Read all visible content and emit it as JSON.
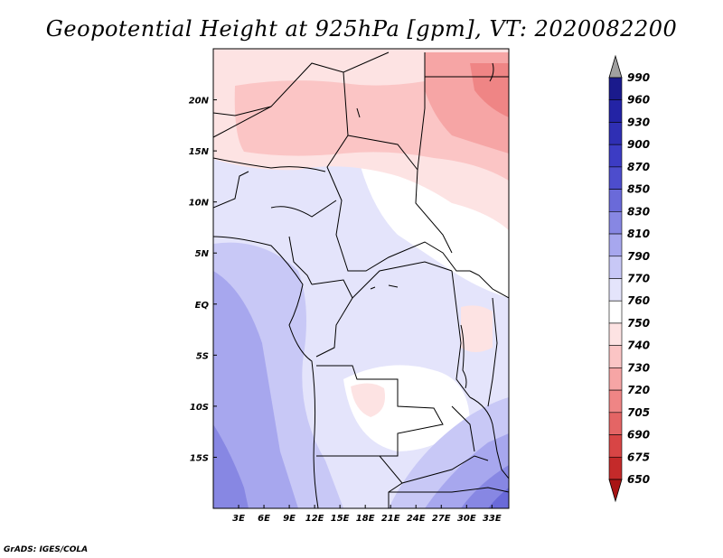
{
  "title": "Geopotential Height at 925hPa [gpm], VT: 2020082200",
  "footer": "GrADS: IGES/COLA",
  "chart_data": {
    "type": "heatmap",
    "title": "Geopotential Height at 925hPa [gpm], VT: 2020082200",
    "field": "Geopotential Height at 925hPa",
    "units": "gpm",
    "valid_time": "2020082200",
    "x_ticks": [
      "3E",
      "6E",
      "9E",
      "12E",
      "15E",
      "18E",
      "21E",
      "24E",
      "27E",
      "30E",
      "33E"
    ],
    "x_tick_values": [
      3,
      6,
      9,
      12,
      15,
      18,
      21,
      24,
      27,
      30,
      33
    ],
    "y_ticks": [
      "20N",
      "15N",
      "10N",
      "5N",
      "EQ",
      "5S",
      "10S",
      "15S"
    ],
    "y_tick_values": [
      20,
      15,
      10,
      5,
      0,
      -5,
      -10,
      -15
    ],
    "xlim": [
      0,
      35
    ],
    "ylim": [
      -20,
      25
    ],
    "colorbar": {
      "levels": [
        "990",
        "960",
        "930",
        "900",
        "870",
        "850",
        "830",
        "810",
        "790",
        "770",
        "760",
        "750",
        "740",
        "730",
        "720",
        "705",
        "690",
        "675",
        "650"
      ],
      "colors": [
        "#a0a0a0",
        "#1a1a8c",
        "#2323a5",
        "#2f2fb4",
        "#3c3cc4",
        "#4d4dcd",
        "#6a6ad9",
        "#8787e3",
        "#a7a7ee",
        "#c8c8f6",
        "#e4e4fb",
        "#ffffff",
        "#fde3e3",
        "#fbc5c5",
        "#f6a5a5",
        "#ef8585",
        "#e46565",
        "#d84545",
        "#c42a2a",
        "#a81414"
      ]
    }
  }
}
